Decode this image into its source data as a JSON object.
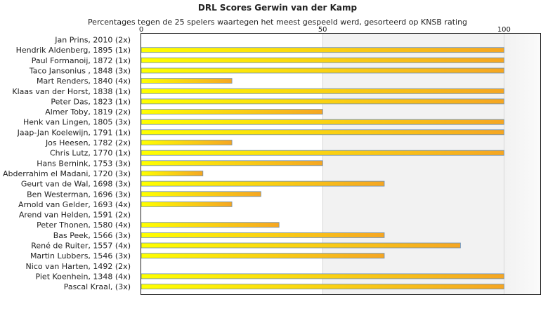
{
  "chart_data": {
    "type": "bar",
    "orientation": "horizontal",
    "title": "DRL Scores Gerwin van der Kamp",
    "subtitle": "Percentages tegen de 25 spelers waartegen het meest gespeeld werd, gesorteerd op KNSB rating",
    "xlim": [
      0,
      110
    ],
    "xticks": [
      "0",
      "50",
      "100"
    ],
    "grid": true,
    "categories": [
      "Jan Prins, 2010 (2x)",
      "Hendrik Aldenberg, 1895 (1x)",
      "Paul Formanoij, 1872 (1x)",
      "Taco Jansonius , 1848 (3x)",
      "Mart Renders, 1840 (4x)",
      "Klaas van der Horst, 1838 (1x)",
      "Peter Das, 1823 (1x)",
      "Almer Toby, 1819 (2x)",
      "Henk van Lingen, 1805 (3x)",
      "Jaap-Jan Koelewijn, 1791 (1x)",
      "Jos Heesen, 1782 (2x)",
      "Chris Lutz, 1770 (1x)",
      "Hans Bernink, 1753 (3x)",
      "Abderrahim el Madani, 1720 (3x)",
      "Geurt van de Wal, 1698 (3x)",
      "Ben Westerman, 1696 (3x)",
      "Arnold van Gelder, 1693 (4x)",
      "Arend van Helden, 1591 (2x)",
      "Peter Thonen, 1580 (4x)",
      "Bas Peek, 1566 (3x)",
      "René de Ruiter, 1557 (4x)",
      "Martin Lubbers, 1546 (3x)",
      "Nico van Harten, 1492 (2x)",
      "Piet Koenhein, 1348 (4x)",
      "Pascal Kraal,  (3x)"
    ],
    "values": [
      0,
      100,
      100,
      100,
      25,
      100,
      100,
      50,
      100,
      100,
      25,
      100,
      50,
      17,
      67,
      33,
      25,
      0,
      38,
      67,
      88,
      67,
      0,
      100,
      100
    ]
  },
  "colors": {
    "bar_start": "#ffff00",
    "bar_end": "#f5a623",
    "bar_border": "#6a8fb5",
    "shade": "#f2f2f2"
  }
}
